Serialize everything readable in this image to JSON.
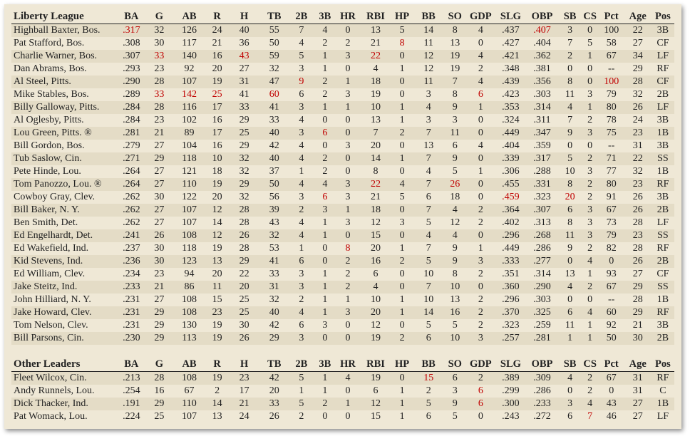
{
  "columns": [
    "BA",
    "G",
    "AB",
    "R",
    "H",
    "TB",
    "2B",
    "3B",
    "HR",
    "RBI",
    "HP",
    "BB",
    "SO",
    "GDP",
    "SLG",
    "OBP",
    "SB",
    "CS",
    "Pct",
    "Age",
    "Pos"
  ],
  "highlight_color": "#c00000",
  "league": {
    "title": "Liberty League",
    "rows": [
      {
        "name": "Highball Baxter, Bos.",
        "stats": [
          ".317",
          "32",
          "126",
          "24",
          "40",
          "55",
          "7",
          "4",
          "0",
          "13",
          "5",
          "14",
          "8",
          "4",
          ".437",
          ".407",
          "3",
          "0",
          "100",
          "22",
          "3B"
        ],
        "hl": [
          0,
          15
        ]
      },
      {
        "name": "Pat Stafford, Bos.",
        "stats": [
          ".308",
          "30",
          "117",
          "21",
          "36",
          "50",
          "4",
          "2",
          "2",
          "21",
          "8",
          "11",
          "13",
          "0",
          ".427",
          ".404",
          "7",
          "5",
          "58",
          "27",
          "CF"
        ],
        "hl": [
          10
        ]
      },
      {
        "name": "Charlie Warner, Bos.",
        "stats": [
          ".307",
          "33",
          "140",
          "16",
          "43",
          "59",
          "5",
          "1",
          "3",
          "22",
          "0",
          "12",
          "19",
          "4",
          ".421",
          ".362",
          "2",
          "1",
          "67",
          "34",
          "LF"
        ],
        "hl": [
          1,
          4,
          9
        ]
      },
      {
        "name": "Dan Abrams, Bos.",
        "stats": [
          ".293",
          "23",
          "92",
          "20",
          "27",
          "32",
          "3",
          "1",
          "0",
          "4",
          "1",
          "12",
          "19",
          "2",
          ".348",
          ".381",
          "0",
          "0",
          "--",
          "29",
          "RF"
        ],
        "hl": []
      },
      {
        "name": "Al Steel, Pitts.",
        "stats": [
          ".290",
          "28",
          "107",
          "19",
          "31",
          "47",
          "9",
          "2",
          "1",
          "18",
          "0",
          "11",
          "7",
          "4",
          ".439",
          ".356",
          "8",
          "0",
          "100",
          "28",
          "CF"
        ],
        "hl": [
          6,
          18
        ]
      },
      {
        "name": "Mike Stables, Bos.",
        "stats": [
          ".289",
          "33",
          "142",
          "25",
          "41",
          "60",
          "6",
          "2",
          "3",
          "19",
          "0",
          "3",
          "8",
          "6",
          ".423",
          ".303",
          "11",
          "3",
          "79",
          "32",
          "2B"
        ],
        "hl": [
          1,
          2,
          3,
          5,
          13
        ]
      },
      {
        "name": "Billy Galloway, Pitts.",
        "stats": [
          ".284",
          "28",
          "116",
          "17",
          "33",
          "41",
          "3",
          "1",
          "1",
          "10",
          "1",
          "4",
          "9",
          "1",
          ".353",
          ".314",
          "4",
          "1",
          "80",
          "26",
          "LF"
        ],
        "hl": []
      },
      {
        "name": "Al Oglesby, Pitts.",
        "stats": [
          ".284",
          "23",
          "102",
          "16",
          "29",
          "33",
          "4",
          "0",
          "0",
          "13",
          "1",
          "3",
          "3",
          "0",
          ".324",
          ".311",
          "7",
          "2",
          "78",
          "24",
          "3B"
        ],
        "hl": []
      },
      {
        "name": "Lou Green, Pitts. ®",
        "stats": [
          ".281",
          "21",
          "89",
          "17",
          "25",
          "40",
          "3",
          "6",
          "0",
          "7",
          "2",
          "7",
          "11",
          "0",
          ".449",
          ".347",
          "9",
          "3",
          "75",
          "23",
          "1B"
        ],
        "hl": [
          7
        ]
      },
      {
        "name": "Bill Gordon, Bos.",
        "stats": [
          ".279",
          "27",
          "104",
          "16",
          "29",
          "42",
          "4",
          "0",
          "3",
          "20",
          "0",
          "13",
          "6",
          "4",
          ".404",
          ".359",
          "0",
          "0",
          "--",
          "31",
          "3B"
        ],
        "hl": []
      },
      {
        "name": "Tub Saslow, Cin.",
        "stats": [
          ".271",
          "29",
          "118",
          "10",
          "32",
          "40",
          "4",
          "2",
          "0",
          "14",
          "1",
          "7",
          "9",
          "0",
          ".339",
          ".317",
          "5",
          "2",
          "71",
          "22",
          "SS"
        ],
        "hl": []
      },
      {
        "name": "Pete Hinde, Lou.",
        "stats": [
          ".264",
          "27",
          "121",
          "18",
          "32",
          "37",
          "1",
          "2",
          "0",
          "8",
          "0",
          "4",
          "5",
          "1",
          ".306",
          ".288",
          "10",
          "3",
          "77",
          "32",
          "1B"
        ],
        "hl": []
      },
      {
        "name": "Tom Panozzo, Lou. ®",
        "stats": [
          ".264",
          "27",
          "110",
          "19",
          "29",
          "50",
          "4",
          "4",
          "3",
          "22",
          "4",
          "7",
          "26",
          "0",
          ".455",
          ".331",
          "8",
          "2",
          "80",
          "23",
          "RF"
        ],
        "hl": [
          9,
          12
        ]
      },
      {
        "name": "Cowboy Gray, Clev.",
        "stats": [
          ".262",
          "30",
          "122",
          "20",
          "32",
          "56",
          "3",
          "6",
          "3",
          "21",
          "5",
          "6",
          "18",
          "0",
          ".459",
          ".323",
          "20",
          "2",
          "91",
          "26",
          "3B"
        ],
        "hl": [
          7,
          14,
          16
        ]
      },
      {
        "name": "Bill Baker, N. Y.",
        "stats": [
          ".262",
          "27",
          "107",
          "12",
          "28",
          "39",
          "2",
          "3",
          "1",
          "18",
          "0",
          "7",
          "4",
          "2",
          ".364",
          ".307",
          "6",
          "3",
          "67",
          "26",
          "2B"
        ],
        "hl": []
      },
      {
        "name": "Ben Smith, Det.",
        "stats": [
          ".262",
          "27",
          "107",
          "14",
          "28",
          "43",
          "4",
          "1",
          "3",
          "12",
          "3",
          "5",
          "12",
          "2",
          ".402",
          ".313",
          "8",
          "3",
          "73",
          "28",
          "LF"
        ],
        "hl": []
      },
      {
        "name": "Ed Engelhardt, Det.",
        "stats": [
          ".241",
          "26",
          "108",
          "12",
          "26",
          "32",
          "4",
          "1",
          "0",
          "15",
          "0",
          "4",
          "4",
          "0",
          ".296",
          ".268",
          "11",
          "3",
          "79",
          "23",
          "SS"
        ],
        "hl": []
      },
      {
        "name": "Ed Wakefield, Ind.",
        "stats": [
          ".237",
          "30",
          "118",
          "19",
          "28",
          "53",
          "1",
          "0",
          "8",
          "20",
          "1",
          "7",
          "9",
          "1",
          ".449",
          ".286",
          "9",
          "2",
          "82",
          "28",
          "RF"
        ],
        "hl": [
          8
        ]
      },
      {
        "name": "Kid Stevens, Ind.",
        "stats": [
          ".236",
          "30",
          "123",
          "13",
          "29",
          "41",
          "6",
          "0",
          "2",
          "16",
          "2",
          "5",
          "9",
          "3",
          ".333",
          ".277",
          "0",
          "4",
          "0",
          "26",
          "2B"
        ],
        "hl": []
      },
      {
        "name": "Ed William, Clev.",
        "stats": [
          ".234",
          "23",
          "94",
          "20",
          "22",
          "33",
          "3",
          "1",
          "2",
          "6",
          "0",
          "10",
          "8",
          "2",
          ".351",
          ".314",
          "13",
          "1",
          "93",
          "27",
          "CF"
        ],
        "hl": []
      },
      {
        "name": "Jake Steitz, Ind.",
        "stats": [
          ".233",
          "21",
          "86",
          "11",
          "20",
          "31",
          "3",
          "1",
          "2",
          "4",
          "0",
          "7",
          "10",
          "0",
          ".360",
          ".290",
          "4",
          "2",
          "67",
          "29",
          "SS"
        ],
        "hl": []
      },
      {
        "name": "John Hilliard, N. Y.",
        "stats": [
          ".231",
          "27",
          "108",
          "15",
          "25",
          "32",
          "2",
          "1",
          "1",
          "10",
          "1",
          "10",
          "13",
          "2",
          ".296",
          ".303",
          "0",
          "0",
          "--",
          "28",
          "1B"
        ],
        "hl": []
      },
      {
        "name": "Jake Howard, Clev.",
        "stats": [
          ".231",
          "29",
          "108",
          "23",
          "25",
          "40",
          "4",
          "1",
          "3",
          "20",
          "1",
          "14",
          "16",
          "2",
          ".370",
          ".325",
          "6",
          "4",
          "60",
          "29",
          "RF"
        ],
        "hl": []
      },
      {
        "name": "Tom Nelson, Clev.",
        "stats": [
          ".231",
          "29",
          "130",
          "19",
          "30",
          "42",
          "6",
          "3",
          "0",
          "12",
          "0",
          "5",
          "5",
          "2",
          ".323",
          ".259",
          "11",
          "1",
          "92",
          "21",
          "3B"
        ],
        "hl": []
      },
      {
        "name": "Bill Parsons, Cin.",
        "stats": [
          ".230",
          "29",
          "113",
          "19",
          "26",
          "29",
          "3",
          "0",
          "0",
          "19",
          "2",
          "6",
          "10",
          "3",
          ".257",
          ".281",
          "1",
          "1",
          "50",
          "30",
          "2B"
        ],
        "hl": []
      }
    ]
  },
  "other": {
    "title": "Other Leaders",
    "rows": [
      {
        "name": "Fleet Wilcox, Cin.",
        "stats": [
          ".213",
          "28",
          "108",
          "19",
          "23",
          "42",
          "5",
          "1",
          "4",
          "19",
          "0",
          "15",
          "6",
          "2",
          ".389",
          ".309",
          "4",
          "2",
          "67",
          "31",
          "RF"
        ],
        "hl": [
          11
        ]
      },
      {
        "name": "Andy Runnels, Lou.",
        "stats": [
          ".254",
          "16",
          "67",
          "2",
          "17",
          "20",
          "1",
          "1",
          "0",
          "6",
          "1",
          "2",
          "3",
          "6",
          ".299",
          ".286",
          "0",
          "2",
          "0",
          "31",
          "C"
        ],
        "hl": [
          13
        ]
      },
      {
        "name": "Dick Thacker, Ind.",
        "stats": [
          ".191",
          "29",
          "110",
          "14",
          "21",
          "33",
          "5",
          "2",
          "1",
          "12",
          "1",
          "5",
          "9",
          "6",
          ".300",
          ".233",
          "3",
          "4",
          "43",
          "27",
          "1B"
        ],
        "hl": [
          13
        ]
      },
      {
        "name": "Pat Womack, Lou.",
        "stats": [
          ".224",
          "25",
          "107",
          "13",
          "24",
          "26",
          "2",
          "0",
          "0",
          "15",
          "1",
          "6",
          "5",
          "0",
          ".243",
          ".272",
          "6",
          "7",
          "46",
          "27",
          "LF"
        ],
        "hl": [
          17
        ]
      }
    ]
  }
}
